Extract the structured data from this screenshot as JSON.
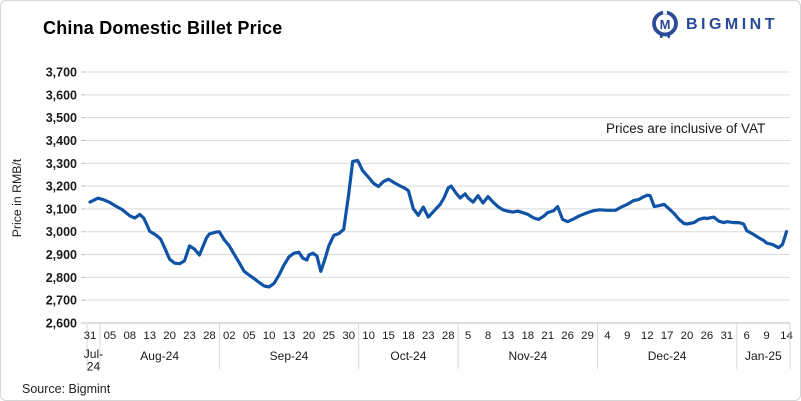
{
  "header": {
    "title": "China Domestic Billet Price",
    "brand": {
      "name": "BIGMINT",
      "color": "#2b4a97"
    }
  },
  "annotation": "Prices are inclusive of VAT",
  "source": "Source: Bigmint",
  "chart_data": {
    "type": "line",
    "title": "China Domestic Billet Price",
    "xlabel": "",
    "ylabel": "Price in RMB/t",
    "ylim": [
      2600,
      3700
    ],
    "ytick_step": 100,
    "grid": "horizontal",
    "legend": "none",
    "line_color": "#1053a6",
    "grid_color": "#d9d9d9",
    "axis_color": "#bfbfbf",
    "text_color": "#1a1a1a",
    "x_groups": [
      {
        "month": "Jul-24",
        "days": [
          "31"
        ]
      },
      {
        "month": "Aug-24",
        "days": [
          "05",
          "08",
          "13",
          "20",
          "23",
          "28"
        ]
      },
      {
        "month": "Sep-24",
        "days": [
          "02",
          "05",
          "10",
          "13",
          "20",
          "25",
          "30"
        ]
      },
      {
        "month": "Oct-24",
        "days": [
          "10",
          "15",
          "18",
          "23",
          "28"
        ]
      },
      {
        "month": "Nov-24",
        "days": [
          "5",
          "8",
          "13",
          "18",
          "21",
          "26",
          "29"
        ]
      },
      {
        "month": "Dec-24",
        "days": [
          "4",
          "9",
          "12",
          "17",
          "20",
          "26",
          "31"
        ]
      },
      {
        "month": "Jan-25",
        "days": [
          "6",
          "9",
          "14"
        ]
      }
    ],
    "series": [
      {
        "name": "China domestic billet price (RMB/t, incl. VAT)",
        "points": [
          [
            0,
            3130
          ],
          [
            0.4,
            3147
          ],
          [
            0.7,
            3140
          ],
          [
            1,
            3128
          ],
          [
            1.3,
            3112
          ],
          [
            1.6,
            3098
          ],
          [
            2,
            3070
          ],
          [
            2.25,
            3060
          ],
          [
            2.5,
            3076
          ],
          [
            2.7,
            3060
          ],
          [
            2.85,
            3032
          ],
          [
            3,
            3002
          ],
          [
            3.3,
            2986
          ],
          [
            3.55,
            2968
          ],
          [
            3.75,
            2930
          ],
          [
            4,
            2880
          ],
          [
            4.25,
            2862
          ],
          [
            4.5,
            2860
          ],
          [
            4.75,
            2872
          ],
          [
            5,
            2938
          ],
          [
            5.25,
            2924
          ],
          [
            5.5,
            2898
          ],
          [
            5.85,
            2972
          ],
          [
            6,
            2990
          ],
          [
            6.3,
            2998
          ],
          [
            6.5,
            3000
          ],
          [
            6.75,
            2964
          ],
          [
            7,
            2938
          ],
          [
            7.25,
            2900
          ],
          [
            7.5,
            2864
          ],
          [
            7.75,
            2826
          ],
          [
            8,
            2810
          ],
          [
            8.25,
            2794
          ],
          [
            8.5,
            2778
          ],
          [
            8.75,
            2762
          ],
          [
            9,
            2758
          ],
          [
            9.25,
            2774
          ],
          [
            9.5,
            2810
          ],
          [
            9.75,
            2854
          ],
          [
            10,
            2890
          ],
          [
            10.25,
            2906
          ],
          [
            10.5,
            2910
          ],
          [
            10.7,
            2884
          ],
          [
            10.9,
            2876
          ],
          [
            11,
            2898
          ],
          [
            11.2,
            2906
          ],
          [
            11.4,
            2894
          ],
          [
            11.6,
            2826
          ],
          [
            11.8,
            2878
          ],
          [
            12,
            2938
          ],
          [
            12.25,
            2984
          ],
          [
            12.5,
            2992
          ],
          [
            12.75,
            3010
          ],
          [
            13,
            3165
          ],
          [
            13.2,
            3308
          ],
          [
            13.45,
            3312
          ],
          [
            13.7,
            3268
          ],
          [
            14,
            3238
          ],
          [
            14.25,
            3212
          ],
          [
            14.5,
            3198
          ],
          [
            14.75,
            3220
          ],
          [
            15,
            3230
          ],
          [
            15.3,
            3214
          ],
          [
            15.6,
            3200
          ],
          [
            15.8,
            3192
          ],
          [
            16,
            3180
          ],
          [
            16.25,
            3100
          ],
          [
            16.5,
            3072
          ],
          [
            16.75,
            3108
          ],
          [
            17,
            3064
          ],
          [
            17.3,
            3092
          ],
          [
            17.6,
            3120
          ],
          [
            17.8,
            3150
          ],
          [
            18,
            3192
          ],
          [
            18.15,
            3200
          ],
          [
            18.4,
            3168
          ],
          [
            18.6,
            3148
          ],
          [
            18.85,
            3166
          ],
          [
            19,
            3148
          ],
          [
            19.25,
            3130
          ],
          [
            19.5,
            3158
          ],
          [
            19.75,
            3126
          ],
          [
            20,
            3154
          ],
          [
            20.25,
            3130
          ],
          [
            20.5,
            3110
          ],
          [
            20.75,
            3096
          ],
          [
            21,
            3090
          ],
          [
            21.25,
            3086
          ],
          [
            21.5,
            3090
          ],
          [
            21.75,
            3084
          ],
          [
            22,
            3076
          ],
          [
            22.3,
            3060
          ],
          [
            22.55,
            3054
          ],
          [
            22.8,
            3068
          ],
          [
            23,
            3084
          ],
          [
            23.3,
            3092
          ],
          [
            23.5,
            3110
          ],
          [
            23.75,
            3054
          ],
          [
            24,
            3044
          ],
          [
            24.3,
            3056
          ],
          [
            24.6,
            3070
          ],
          [
            25,
            3084
          ],
          [
            25.3,
            3092
          ],
          [
            25.6,
            3096
          ],
          [
            26,
            3094
          ],
          [
            26.4,
            3094
          ],
          [
            26.7,
            3108
          ],
          [
            27,
            3120
          ],
          [
            27.3,
            3136
          ],
          [
            27.6,
            3142
          ],
          [
            27.8,
            3152
          ],
          [
            28,
            3160
          ],
          [
            28.15,
            3158
          ],
          [
            28.35,
            3110
          ],
          [
            28.6,
            3114
          ],
          [
            28.85,
            3120
          ],
          [
            29,
            3108
          ],
          [
            29.35,
            3080
          ],
          [
            29.6,
            3054
          ],
          [
            29.85,
            3036
          ],
          [
            30,
            3034
          ],
          [
            30.35,
            3040
          ],
          [
            30.6,
            3054
          ],
          [
            30.85,
            3060
          ],
          [
            31,
            3058
          ],
          [
            31.35,
            3064
          ],
          [
            31.6,
            3046
          ],
          [
            31.85,
            3040
          ],
          [
            32,
            3044
          ],
          [
            32.35,
            3040
          ],
          [
            32.6,
            3040
          ],
          [
            32.85,
            3034
          ],
          [
            33,
            3005
          ],
          [
            33.35,
            2988
          ],
          [
            33.6,
            2974
          ],
          [
            33.85,
            2962
          ],
          [
            34,
            2950
          ],
          [
            34.3,
            2944
          ],
          [
            34.6,
            2930
          ],
          [
            34.8,
            2944
          ],
          [
            35,
            3000
          ]
        ]
      }
    ]
  }
}
